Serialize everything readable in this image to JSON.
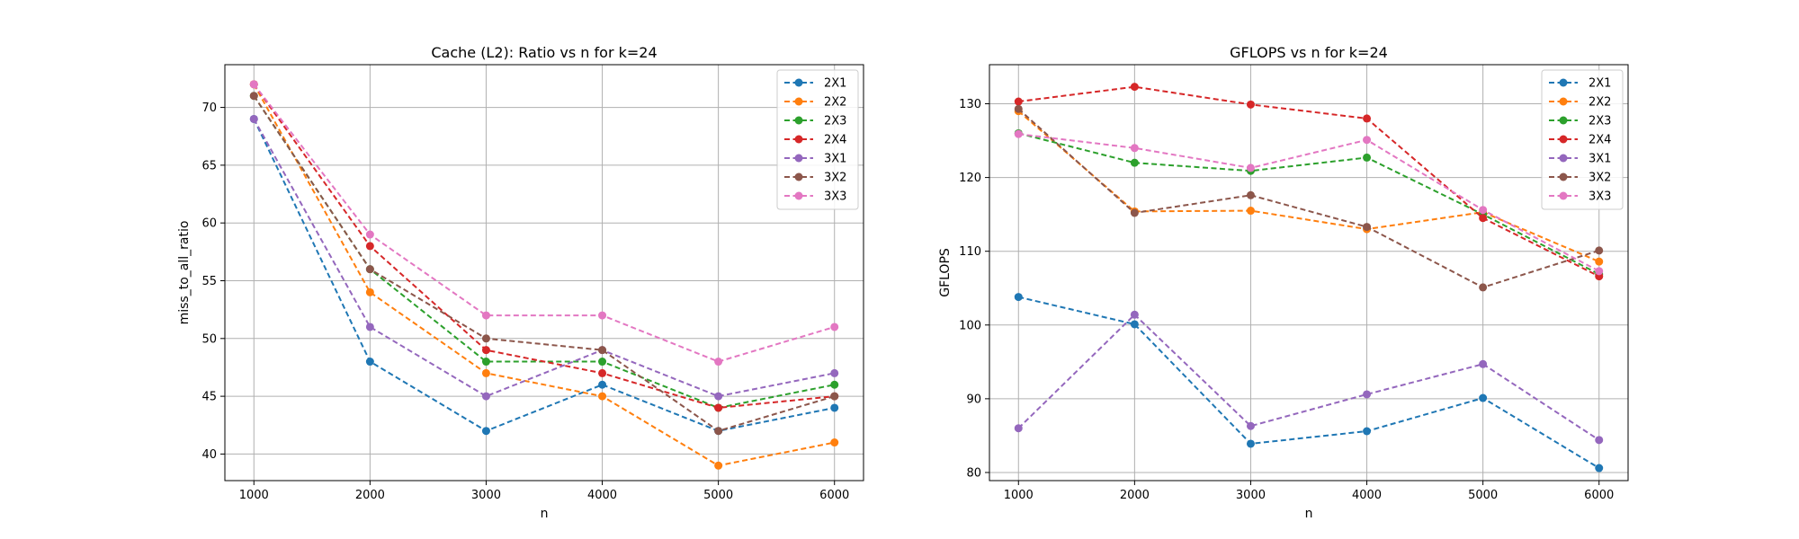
{
  "chart_data": [
    {
      "type": "line",
      "title": "Cache (L2): Ratio vs n for k=24",
      "xlabel": "n",
      "ylabel": "miss_to_all_ratio",
      "x": [
        1000,
        2000,
        3000,
        4000,
        5000,
        6000
      ],
      "xlim": [
        750,
        6250
      ],
      "ylim": [
        37.7,
        73.7
      ],
      "xticks": [
        1000,
        2000,
        3000,
        4000,
        5000,
        6000
      ],
      "yticks": [
        40,
        45,
        50,
        55,
        60,
        65,
        70
      ],
      "grid": true,
      "legend": "top-right",
      "line_style": "dashed",
      "marker": "circle",
      "series": [
        {
          "name": "2X1",
          "color": "#1f77b4",
          "values": [
            69,
            48,
            42,
            46,
            42,
            44
          ]
        },
        {
          "name": "2X2",
          "color": "#ff7f0e",
          "values": [
            72,
            54,
            47,
            45,
            39,
            41
          ]
        },
        {
          "name": "2X3",
          "color": "#2ca02c",
          "values": [
            71,
            56,
            48,
            48,
            44,
            46
          ]
        },
        {
          "name": "2X4",
          "color": "#d62728",
          "values": [
            72,
            58,
            49,
            47,
            44,
            45
          ]
        },
        {
          "name": "3X1",
          "color": "#9467bd",
          "values": [
            69,
            51,
            45,
            49,
            45,
            47
          ]
        },
        {
          "name": "3X2",
          "color": "#8c564b",
          "values": [
            71,
            56,
            50,
            49,
            42,
            45
          ]
        },
        {
          "name": "3X3",
          "color": "#e377c2",
          "values": [
            72,
            59,
            52,
            52,
            48,
            51
          ]
        }
      ]
    },
    {
      "type": "line",
      "title": "GFLOPS vs n for k=24",
      "xlabel": "n",
      "ylabel": "GFLOPS",
      "x": [
        1000,
        2000,
        3000,
        4000,
        5000,
        6000
      ],
      "xlim": [
        750,
        6250
      ],
      "ylim": [
        78.9,
        135.3
      ],
      "xticks": [
        1000,
        2000,
        3000,
        4000,
        5000,
        6000
      ],
      "yticks": [
        80,
        90,
        100,
        110,
        120,
        130
      ],
      "grid": true,
      "legend": "top-right",
      "line_style": "dashed",
      "marker": "circle",
      "series": [
        {
          "name": "2X1",
          "color": "#1f77b4",
          "values": [
            103.8,
            100.1,
            83.9,
            85.6,
            90.1,
            80.6
          ]
        },
        {
          "name": "2X2",
          "color": "#ff7f0e",
          "values": [
            129.0,
            115.4,
            115.5,
            113.0,
            115.3,
            108.6
          ]
        },
        {
          "name": "2X3",
          "color": "#2ca02c",
          "values": [
            126.0,
            122.0,
            120.9,
            122.7,
            115.0,
            106.9
          ]
        },
        {
          "name": "2X4",
          "color": "#d62728",
          "values": [
            130.3,
            132.3,
            129.9,
            128.0,
            114.5,
            106.6
          ]
        },
        {
          "name": "3X1",
          "color": "#9467bd",
          "values": [
            86.0,
            101.4,
            86.3,
            90.6,
            94.7,
            84.4
          ]
        },
        {
          "name": "3X2",
          "color": "#8c564b",
          "values": [
            129.3,
            115.2,
            117.6,
            113.3,
            105.1,
            110.1
          ]
        },
        {
          "name": "3X3",
          "color": "#e377c2",
          "values": [
            125.9,
            124.0,
            121.3,
            125.1,
            115.6,
            107.3
          ]
        }
      ]
    }
  ]
}
